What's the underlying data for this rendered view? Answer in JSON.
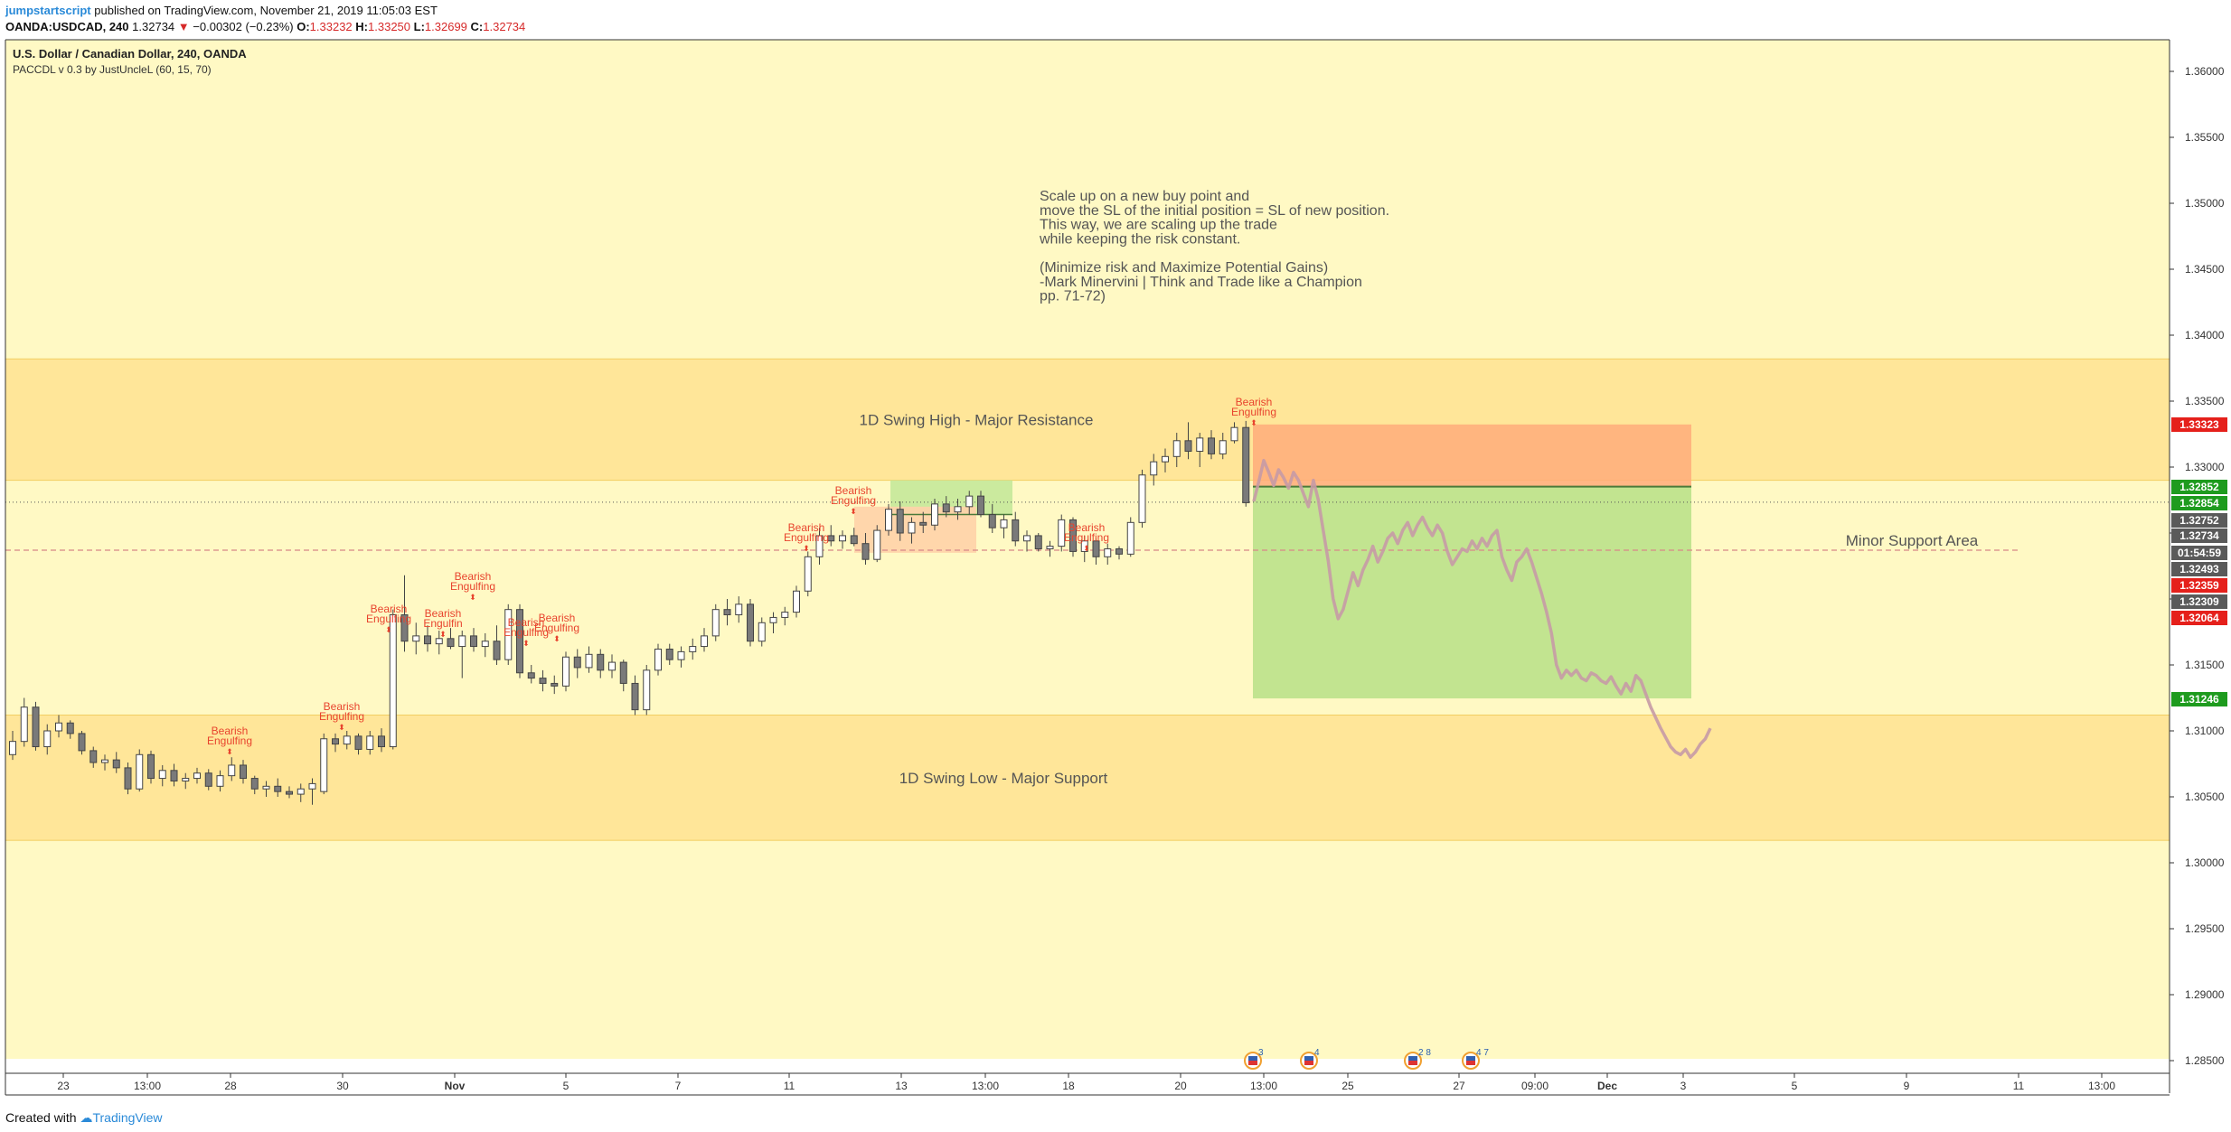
{
  "header": {
    "author": "jumpstartscript",
    "published": "published on TradingView.com, November 21, 2019 11:05:03 EST",
    "symbol": "OANDA:USDCAD, 240",
    "last": "1.32734",
    "change": "−0.00302 (−0.23%)",
    "o_label": "O:",
    "o_value": "1.33232",
    "h_label": "H:",
    "h_value": "1.33250",
    "l_label": "L:",
    "l_value": "1.32699",
    "c_label": "C:",
    "c_value": "1.32734"
  },
  "legend": {
    "title": "U.S. Dollar / Canadian Dollar, 240, OANDA",
    "indicator": "PACCDL v 0.3 by JustUncleL (60, 15, 70)"
  },
  "colors": {
    "background": "#fff9c4",
    "zone": "#ffe699",
    "stop_box": "#ffab7a",
    "target_box": "#bfe38d",
    "pattern_label": "#e8442e",
    "candle_up": "#ffffff",
    "candle_down": "#7a7a7a",
    "projection": "#c79aa6"
  },
  "chart_data": {
    "type": "candlestick",
    "symbol": "OANDA:USDCAD",
    "interval": "240",
    "ylim": [
      1.2835,
      1.3645
    ],
    "x_ticks": [
      "23",
      "13:00",
      "28",
      "30",
      "Nov",
      "5",
      "7",
      "11",
      "13",
      "13:00",
      "18",
      "20",
      "13:00",
      "25",
      "27",
      "09:00",
      "Dec",
      "3",
      "5",
      "9",
      "11",
      "13:00"
    ],
    "y_ticks": [
      "1.36000",
      "1.35500",
      "1.35000",
      "1.34500",
      "1.34000",
      "1.33500",
      "1.33000",
      "1.32500",
      "1.32000",
      "1.31500",
      "1.31000",
      "1.30500",
      "1.30000",
      "1.29500",
      "1.29000",
      "1.28500"
    ],
    "y_tick_values": [
      1.36,
      1.355,
      1.35,
      1.345,
      1.34,
      1.335,
      1.33,
      1.325,
      1.32,
      1.315,
      1.31,
      1.305,
      1.3,
      1.295,
      1.29,
      1.285
    ],
    "price_tags": [
      {
        "text": "1.33323",
        "value": 1.33323,
        "color": "#e5201b"
      },
      {
        "text": "1.32852",
        "value": 1.32852,
        "color": "#1e9b1e"
      },
      {
        "text": "1.32854",
        "value": 1.32854,
        "color": "#1e9b1e"
      },
      {
        "text": "1.32752",
        "value": 1.32752,
        "color": "#5a5a5a"
      },
      {
        "text": "1.32734",
        "value": 1.32734,
        "color": "#5a5a5a"
      },
      {
        "text": "01:54:59",
        "value": 1.326,
        "color": "#5a5a5a"
      },
      {
        "text": "1.32493",
        "value": 1.32493,
        "color": "#5a5a5a"
      },
      {
        "text": "1.32359",
        "value": 1.32359,
        "color": "#e5201b"
      },
      {
        "text": "1.32309",
        "value": 1.32309,
        "color": "#5a5a5a"
      },
      {
        "text": "1.32064",
        "value": 1.32064,
        "color": "#e5201b"
      },
      {
        "text": "1.31246",
        "value": 1.31246,
        "color": "#1e9b1e"
      }
    ],
    "zones": [
      {
        "label": "1D Swing High - Major Resistance",
        "from": 1.329,
        "to": 1.3382
      },
      {
        "label": "1D Swing Low - Major Support",
        "from": 1.3017,
        "to": 1.3112
      }
    ],
    "minor_support": {
      "label": "Minor Support Area",
      "value": 1.3237
    },
    "current_price_line": 1.32734,
    "position": {
      "entry": 1.32852,
      "stop": 1.33323,
      "target": 1.31246
    },
    "note_lines": [
      "Scale up on a new buy point and",
      "move the SL of the initial position = SL of new position.",
      "This way, we are scaling up the trade",
      "while keeping the risk constant.",
      "",
      "(Minimize risk and Maximize Potential Gains)",
      "-Mark Minervini | Think and Trade like a Champion",
      "pp. 71-72)"
    ],
    "pattern_labels": [
      {
        "line1": "Bearish",
        "line2": "Engulfing"
      },
      {
        "line1": "Bearish",
        "line2": "Engulfing"
      },
      {
        "line1": "Bearish",
        "line2": "Engulfing"
      },
      {
        "line1": "Bearish",
        "line2": "Engulfin"
      },
      {
        "line1": "Bearish",
        "line2": "Engulfing"
      },
      {
        "line1": "Bearish",
        "line2": "Engulfing"
      },
      {
        "line1": "Bearish",
        "line2": "Engulfing"
      },
      {
        "line1": "Bearish",
        "line2": "Engulfing"
      },
      {
        "line1": "Bearish",
        "line2": "Engulfing"
      },
      {
        "line1": "Bearish",
        "line2": "Engulfing"
      },
      {
        "line1": "Bearish",
        "line2": "Engulfing"
      }
    ],
    "candles": [
      [
        1.3082,
        1.31,
        1.3078,
        1.3092
      ],
      [
        1.3092,
        1.3125,
        1.3088,
        1.3118
      ],
      [
        1.3118,
        1.3122,
        1.3085,
        1.3088
      ],
      [
        1.3088,
        1.3105,
        1.3082,
        1.31
      ],
      [
        1.31,
        1.3112,
        1.3095,
        1.3106
      ],
      [
        1.3106,
        1.3108,
        1.3094,
        1.3098
      ],
      [
        1.3098,
        1.31,
        1.3082,
        1.3085
      ],
      [
        1.3085,
        1.3088,
        1.3072,
        1.3076
      ],
      [
        1.3076,
        1.3082,
        1.307,
        1.3078
      ],
      [
        1.3078,
        1.3084,
        1.3068,
        1.3072
      ],
      [
        1.3072,
        1.3076,
        1.3052,
        1.3056
      ],
      [
        1.3056,
        1.3086,
        1.3054,
        1.3082
      ],
      [
        1.3082,
        1.3085,
        1.306,
        1.3064
      ],
      [
        1.3064,
        1.3074,
        1.3058,
        1.307
      ],
      [
        1.307,
        1.3075,
        1.3058,
        1.3062
      ],
      [
        1.3062,
        1.3068,
        1.3056,
        1.3064
      ],
      [
        1.3064,
        1.3072,
        1.306,
        1.3068
      ],
      [
        1.3068,
        1.3071,
        1.3055,
        1.3058
      ],
      [
        1.3058,
        1.307,
        1.3054,
        1.3066
      ],
      [
        1.3066,
        1.308,
        1.3062,
        1.3074
      ],
      [
        1.3074,
        1.3078,
        1.306,
        1.3064
      ],
      [
        1.3064,
        1.3066,
        1.3052,
        1.3056
      ],
      [
        1.3056,
        1.3062,
        1.305,
        1.3058
      ],
      [
        1.3058,
        1.3064,
        1.305,
        1.3054
      ],
      [
        1.3054,
        1.3058,
        1.3049,
        1.3052
      ],
      [
        1.3052,
        1.306,
        1.3046,
        1.3056
      ],
      [
        1.3056,
        1.3064,
        1.3044,
        1.306
      ],
      [
        1.3054,
        1.3098,
        1.3052,
        1.3094
      ],
      [
        1.3094,
        1.3098,
        1.3084,
        1.309
      ],
      [
        1.309,
        1.31,
        1.3086,
        1.3096
      ],
      [
        1.3096,
        1.3098,
        1.3082,
        1.3086
      ],
      [
        1.3086,
        1.31,
        1.3082,
        1.3096
      ],
      [
        1.3096,
        1.3102,
        1.3084,
        1.3088
      ],
      [
        1.3088,
        1.3192,
        1.3086,
        1.3188
      ],
      [
        1.3188,
        1.3218,
        1.316,
        1.3168
      ],
      [
        1.3168,
        1.3182,
        1.3158,
        1.3172
      ],
      [
        1.3172,
        1.318,
        1.316,
        1.3166
      ],
      [
        1.3166,
        1.3176,
        1.3158,
        1.317
      ],
      [
        1.317,
        1.3178,
        1.3162,
        1.3164
      ],
      [
        1.3164,
        1.3176,
        1.314,
        1.3172
      ],
      [
        1.3172,
        1.3178,
        1.316,
        1.3164
      ],
      [
        1.3164,
        1.3174,
        1.3156,
        1.3168
      ],
      [
        1.3168,
        1.318,
        1.315,
        1.3154
      ],
      [
        1.3154,
        1.3196,
        1.315,
        1.3192
      ],
      [
        1.3192,
        1.3196,
        1.314,
        1.3144
      ],
      [
        1.3144,
        1.315,
        1.3136,
        1.314
      ],
      [
        1.314,
        1.3146,
        1.313,
        1.3136
      ],
      [
        1.3136,
        1.3142,
        1.3128,
        1.3134
      ],
      [
        1.3134,
        1.316,
        1.313,
        1.3156
      ],
      [
        1.3156,
        1.3162,
        1.314,
        1.3148
      ],
      [
        1.3148,
        1.3164,
        1.3144,
        1.3158
      ],
      [
        1.3158,
        1.3162,
        1.314,
        1.3146
      ],
      [
        1.3146,
        1.3158,
        1.314,
        1.3152
      ],
      [
        1.3152,
        1.3154,
        1.313,
        1.3136
      ],
      [
        1.3136,
        1.3142,
        1.3112,
        1.3116
      ],
      [
        1.3116,
        1.315,
        1.3112,
        1.3146
      ],
      [
        1.3146,
        1.3166,
        1.3142,
        1.3162
      ],
      [
        1.3162,
        1.3166,
        1.315,
        1.3154
      ],
      [
        1.3154,
        1.3164,
        1.3148,
        1.316
      ],
      [
        1.316,
        1.317,
        1.3154,
        1.3164
      ],
      [
        1.3164,
        1.3178,
        1.316,
        1.3172
      ],
      [
        1.3172,
        1.3196,
        1.3168,
        1.3192
      ],
      [
        1.3192,
        1.32,
        1.318,
        1.3188
      ],
      [
        1.3188,
        1.3202,
        1.3182,
        1.3196
      ],
      [
        1.3196,
        1.32,
        1.3164,
        1.3168
      ],
      [
        1.3168,
        1.3186,
        1.3164,
        1.3182
      ],
      [
        1.3182,
        1.319,
        1.3174,
        1.3186
      ],
      [
        1.3186,
        1.3194,
        1.318,
        1.319
      ],
      [
        1.319,
        1.321,
        1.3186,
        1.3206
      ],
      [
        1.3206,
        1.3236,
        1.3202,
        1.3232
      ],
      [
        1.3232,
        1.3254,
        1.3226,
        1.3248
      ],
      [
        1.3248,
        1.3256,
        1.324,
        1.3244
      ],
      [
        1.3244,
        1.3252,
        1.3238,
        1.3248
      ],
      [
        1.3248,
        1.3254,
        1.324,
        1.3242
      ],
      [
        1.3242,
        1.325,
        1.3226,
        1.323
      ],
      [
        1.323,
        1.3256,
        1.3228,
        1.3252
      ],
      [
        1.3252,
        1.3272,
        1.3248,
        1.3268
      ],
      [
        1.3268,
        1.3274,
        1.3244,
        1.325
      ],
      [
        1.325,
        1.3262,
        1.3242,
        1.3258
      ],
      [
        1.3258,
        1.3266,
        1.325,
        1.3256
      ],
      [
        1.3256,
        1.3276,
        1.3252,
        1.3272
      ],
      [
        1.3272,
        1.3278,
        1.3262,
        1.3266
      ],
      [
        1.3266,
        1.3276,
        1.326,
        1.327
      ],
      [
        1.327,
        1.3282,
        1.3264,
        1.3278
      ],
      [
        1.3278,
        1.3282,
        1.3262,
        1.3264
      ],
      [
        1.3264,
        1.3272,
        1.325,
        1.3254
      ],
      [
        1.3254,
        1.3264,
        1.3246,
        1.326
      ],
      [
        1.326,
        1.3266,
        1.324,
        1.3244
      ],
      [
        1.3244,
        1.3252,
        1.3236,
        1.3248
      ],
      [
        1.3248,
        1.325,
        1.3236,
        1.3238
      ],
      [
        1.3238,
        1.3244,
        1.3232,
        1.324
      ],
      [
        1.324,
        1.3264,
        1.3236,
        1.326
      ],
      [
        1.326,
        1.3262,
        1.3232,
        1.3236
      ],
      [
        1.3236,
        1.3248,
        1.3228,
        1.3244
      ],
      [
        1.3244,
        1.3246,
        1.3226,
        1.3232
      ],
      [
        1.3232,
        1.3242,
        1.3226,
        1.3238
      ],
      [
        1.3238,
        1.324,
        1.323,
        1.3234
      ],
      [
        1.3234,
        1.3262,
        1.3232,
        1.3258
      ],
      [
        1.3258,
        1.3298,
        1.3254,
        1.3294
      ],
      [
        1.3294,
        1.331,
        1.3286,
        1.3304
      ],
      [
        1.3304,
        1.3314,
        1.3296,
        1.3308
      ],
      [
        1.3308,
        1.3326,
        1.33,
        1.332
      ],
      [
        1.332,
        1.3334,
        1.3306,
        1.3312
      ],
      [
        1.3312,
        1.3326,
        1.33,
        1.3322
      ],
      [
        1.3322,
        1.3328,
        1.3306,
        1.331
      ],
      [
        1.331,
        1.3326,
        1.3306,
        1.332
      ],
      [
        1.332,
        1.3334,
        1.3318,
        1.333
      ],
      [
        1.333,
        1.3335,
        1.327,
        1.3273
      ]
    ],
    "projection": [
      1.3274,
      1.3289,
      1.3305,
      1.3296,
      1.3286,
      1.3298,
      1.3292,
      1.3284,
      1.3296,
      1.329,
      1.328,
      1.327,
      1.329,
      1.3275,
      1.3252,
      1.3229,
      1.32,
      1.3185,
      1.3192,
      1.3206,
      1.322,
      1.321,
      1.3222,
      1.323,
      1.324,
      1.3228,
      1.3236,
      1.3246,
      1.325,
      1.3242,
      1.3252,
      1.3258,
      1.3248,
      1.3256,
      1.3262,
      1.3254,
      1.3248,
      1.3256,
      1.325,
      1.3236,
      1.3226,
      1.3232,
      1.3238,
      1.3236,
      1.3244,
      1.3238,
      1.3246,
      1.324,
      1.3248,
      1.3252,
      1.3232,
      1.3222,
      1.3214,
      1.3228,
      1.3232,
      1.3238,
      1.3228,
      1.3216,
      1.3204,
      1.319,
      1.3174,
      1.315,
      1.314,
      1.3146,
      1.3142,
      1.3146,
      1.314,
      1.3138,
      1.3144,
      1.3142,
      1.3138,
      1.3136,
      1.3141,
      1.3134,
      1.3128,
      1.3136,
      1.313,
      1.3142,
      1.3138,
      1.3128,
      1.3118,
      1.311,
      1.3102,
      1.3095,
      1.3088,
      1.3084,
      1.3082,
      1.3086,
      1.308,
      1.3084,
      1.309,
      1.3094,
      1.3102
    ],
    "event_icons": [
      {
        "x_label": "13:00",
        "badge": "3"
      },
      {
        "x_label": "25",
        "badge": "4"
      },
      {
        "x_label": "27",
        "badge": "2 8"
      },
      {
        "x_label": "27",
        "badge": "4 7"
      }
    ]
  },
  "footer": {
    "created": "Created with",
    "brand": "TradingView"
  }
}
